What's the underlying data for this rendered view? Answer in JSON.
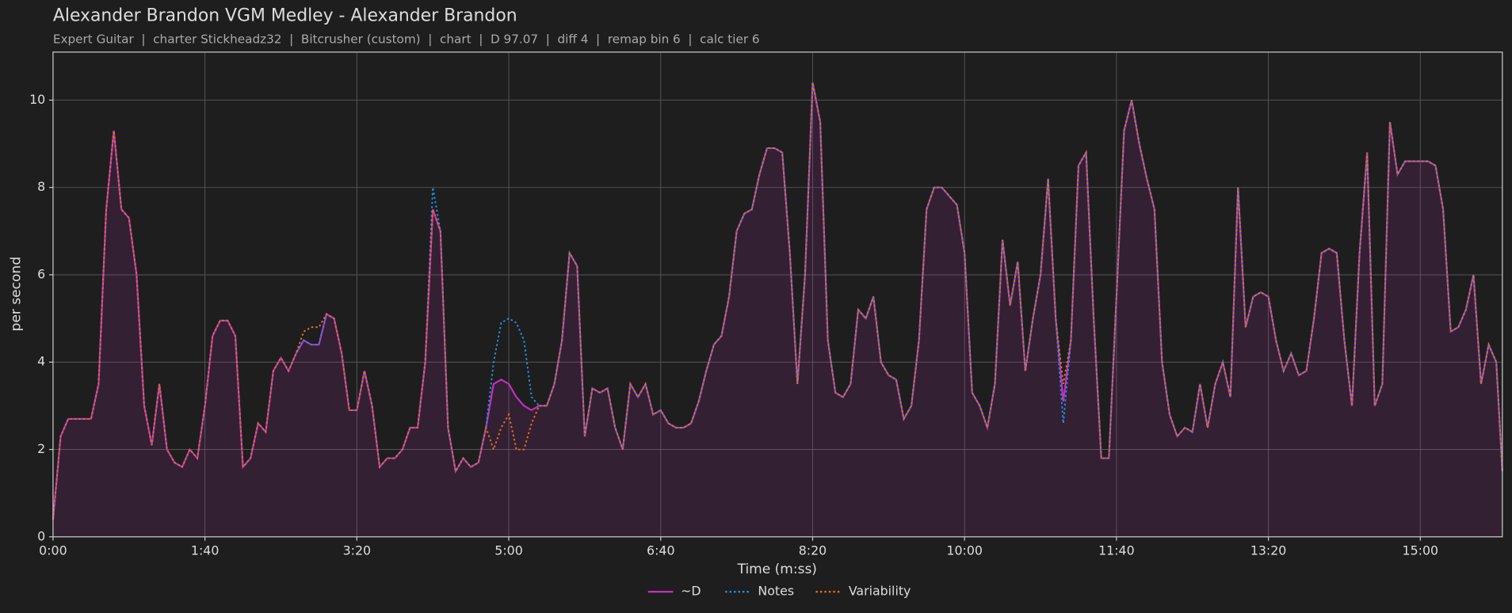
{
  "chart_data": {
    "type": "line",
    "title": "Alexander Brandon VGM Medley - Alexander Brandon",
    "subtitle": "Expert Guitar  |  charter Stickheadz32  |  Bitcrusher (custom)  |  chart  |  D 97.07  |  diff 4  |  remap bin 6  |  calc tier 6",
    "xlabel": "Time (m:ss)",
    "ylabel": "per second",
    "xlim": [
      0,
      954
    ],
    "ylim": [
      0,
      11.1
    ],
    "xticks": [
      {
        "value": 0,
        "label": "0:00"
      },
      {
        "value": 100,
        "label": "1:40"
      },
      {
        "value": 200,
        "label": "3:20"
      },
      {
        "value": 300,
        "label": "5:00"
      },
      {
        "value": 400,
        "label": "6:40"
      },
      {
        "value": 500,
        "label": "8:20"
      },
      {
        "value": 600,
        "label": "10:00"
      },
      {
        "value": 700,
        "label": "11:40"
      },
      {
        "value": 800,
        "label": "13:20"
      },
      {
        "value": 900,
        "label": "15:00"
      }
    ],
    "yticks": [
      0,
      2,
      4,
      6,
      8,
      10
    ],
    "grid": true,
    "legend": "bottom",
    "x": [
      0,
      5,
      10,
      15,
      20,
      25,
      30,
      35,
      40,
      45,
      50,
      55,
      60,
      65,
      70,
      75,
      80,
      85,
      90,
      95,
      100,
      105,
      110,
      115,
      120,
      125,
      130,
      135,
      140,
      145,
      150,
      155,
      160,
      165,
      170,
      175,
      180,
      185,
      190,
      195,
      200,
      205,
      210,
      215,
      220,
      225,
      230,
      235,
      240,
      245,
      250,
      255,
      260,
      265,
      270,
      275,
      280,
      285,
      290,
      295,
      300,
      305,
      310,
      315,
      320,
      325,
      330,
      335,
      340,
      345,
      350,
      355,
      360,
      365,
      370,
      375,
      380,
      385,
      390,
      395,
      400,
      405,
      410,
      415,
      420,
      425,
      430,
      435,
      440,
      445,
      450,
      455,
      460,
      465,
      470,
      475,
      480,
      485,
      490,
      495,
      500,
      505,
      510,
      515,
      520,
      525,
      530,
      535,
      540,
      545,
      550,
      555,
      560,
      565,
      570,
      575,
      580,
      585,
      590,
      595,
      600,
      605,
      610,
      615,
      620,
      625,
      630,
      635,
      640,
      645,
      650,
      655,
      660,
      665,
      670,
      675,
      680,
      685,
      690,
      695,
      700,
      705,
      710,
      715,
      720,
      725,
      730,
      735,
      740,
      745,
      750,
      755,
      760,
      765,
      770,
      775,
      780,
      785,
      790,
      795,
      800,
      805,
      810,
      815,
      820,
      825,
      830,
      835,
      840,
      845,
      850,
      855,
      860,
      865,
      870,
      875,
      880,
      885,
      890,
      895,
      900,
      905,
      910,
      915,
      920,
      925,
      930,
      935,
      940,
      945,
      950,
      954
    ],
    "series": [
      {
        "name": "~D",
        "color": "#c030c0",
        "dash": "solid",
        "values": [
          0.4,
          2.3,
          2.7,
          2.7,
          2.7,
          2.7,
          3.5,
          7.5,
          9.3,
          7.5,
          7.3,
          6.0,
          3.0,
          2.1,
          3.5,
          2.0,
          1.7,
          1.6,
          2.0,
          1.8,
          3.0,
          4.6,
          4.95,
          4.95,
          4.6,
          1.6,
          1.8,
          2.6,
          2.4,
          3.8,
          4.1,
          3.8,
          4.2,
          4.5,
          4.4,
          4.4,
          5.1,
          5.0,
          4.2,
          2.9,
          2.9,
          3.8,
          3.0,
          1.6,
          1.8,
          1.8,
          2.0,
          2.5,
          2.5,
          4.0,
          7.5,
          7.0,
          2.5,
          1.5,
          1.8,
          1.6,
          1.7,
          2.5,
          3.5,
          3.6,
          3.5,
          3.2,
          3.0,
          2.9,
          3.0,
          3.0,
          3.5,
          4.5,
          6.5,
          6.2,
          2.3,
          3.4,
          3.3,
          3.4,
          2.5,
          2.0,
          3.5,
          3.2,
          3.5,
          2.8,
          2.9,
          2.6,
          2.5,
          2.5,
          2.6,
          3.1,
          3.8,
          4.4,
          4.6,
          5.5,
          7.0,
          7.4,
          7.5,
          8.3,
          8.9,
          8.9,
          8.8,
          6.5,
          3.5,
          6.0,
          10.4,
          9.5,
          4.5,
          3.3,
          3.2,
          3.5,
          5.2,
          5.0,
          5.5,
          4.0,
          3.7,
          3.6,
          2.7,
          3.0,
          4.5,
          7.5,
          8.0,
          8.0,
          7.8,
          7.6,
          6.5,
          3.3,
          3.0,
          2.5,
          3.5,
          6.8,
          5.3,
          6.3,
          3.8,
          5.0,
          6.0,
          8.2,
          5.0,
          3.1,
          4.5,
          8.5,
          8.8,
          5.0,
          1.8,
          1.8,
          5.5,
          9.3,
          10.0,
          9.0,
          8.2,
          7.5,
          4.0,
          2.8,
          2.3,
          2.5,
          2.4,
          3.5,
          2.5,
          3.5,
          4.0,
          3.2,
          8.0,
          4.8,
          5.5,
          5.6,
          5.5,
          4.5,
          3.8,
          4.2,
          3.7,
          3.8,
          5.0,
          6.5,
          6.6,
          6.5,
          4.5,
          3.0,
          6.5,
          8.8,
          3.0,
          3.5,
          9.5,
          8.3,
          8.6,
          8.6,
          8.6,
          8.6,
          8.5,
          7.5,
          4.7,
          4.8,
          5.2,
          6.0,
          3.5,
          4.4,
          4.0,
          1.5
        ]
      },
      {
        "name": "Notes",
        "color": "#2090e0",
        "dash": "dotted",
        "values": [
          0.4,
          2.3,
          2.7,
          2.7,
          2.7,
          2.7,
          3.5,
          7.5,
          9.3,
          7.5,
          7.3,
          6.0,
          3.0,
          2.1,
          3.5,
          2.0,
          1.7,
          1.6,
          2.0,
          1.8,
          3.0,
          4.6,
          4.95,
          4.95,
          4.6,
          1.6,
          1.8,
          2.6,
          2.4,
          3.8,
          4.1,
          3.8,
          4.2,
          4.5,
          4.4,
          4.4,
          5.1,
          5.0,
          4.2,
          2.9,
          2.9,
          3.8,
          3.0,
          1.6,
          1.8,
          1.8,
          2.0,
          2.5,
          2.5,
          4.0,
          8.0,
          7.0,
          2.5,
          1.5,
          1.8,
          1.6,
          1.7,
          2.5,
          4.0,
          4.9,
          5.0,
          4.9,
          4.5,
          3.2,
          3.0,
          3.0,
          3.5,
          4.5,
          6.5,
          6.2,
          2.3,
          3.4,
          3.3,
          3.4,
          2.5,
          2.0,
          3.5,
          3.2,
          3.5,
          2.8,
          2.9,
          2.6,
          2.5,
          2.5,
          2.6,
          3.1,
          3.8,
          4.4,
          4.6,
          5.5,
          7.0,
          7.4,
          7.5,
          8.3,
          8.9,
          8.9,
          8.8,
          6.5,
          3.5,
          6.0,
          10.4,
          9.5,
          4.5,
          3.3,
          3.2,
          3.5,
          5.2,
          5.0,
          5.5,
          4.0,
          3.7,
          3.6,
          2.7,
          3.0,
          4.5,
          7.5,
          8.0,
          8.0,
          7.8,
          7.6,
          6.5,
          3.3,
          3.0,
          2.5,
          3.5,
          6.8,
          5.3,
          6.3,
          3.8,
          5.0,
          6.0,
          8.2,
          5.0,
          2.6,
          4.5,
          8.5,
          8.8,
          5.0,
          1.8,
          1.8,
          5.5,
          9.3,
          10.0,
          9.0,
          8.2,
          7.5,
          4.0,
          2.8,
          2.3,
          2.5,
          2.4,
          3.5,
          2.5,
          3.5,
          4.0,
          3.2,
          8.0,
          4.8,
          5.5,
          5.6,
          5.5,
          4.5,
          3.8,
          4.2,
          3.7,
          3.8,
          5.0,
          6.5,
          6.6,
          6.5,
          4.5,
          3.0,
          6.5,
          8.8,
          3.0,
          3.5,
          9.5,
          8.3,
          8.6,
          8.6,
          8.6,
          8.6,
          8.5,
          7.5,
          4.7,
          4.8,
          5.2,
          6.0,
          3.5,
          4.4,
          4.0,
          1.5
        ]
      },
      {
        "name": "Variability",
        "color": "#e07020",
        "dash": "dotted",
        "values": [
          0.4,
          2.3,
          2.7,
          2.7,
          2.7,
          2.7,
          3.5,
          7.5,
          9.3,
          7.5,
          7.3,
          6.0,
          3.0,
          2.1,
          3.5,
          2.0,
          1.7,
          1.6,
          2.0,
          1.8,
          3.0,
          4.6,
          4.95,
          4.95,
          4.6,
          1.6,
          1.8,
          2.6,
          2.4,
          3.8,
          4.1,
          3.8,
          4.2,
          4.7,
          4.8,
          4.8,
          5.1,
          5.0,
          4.2,
          2.9,
          2.9,
          3.8,
          3.0,
          1.6,
          1.8,
          1.8,
          2.0,
          2.5,
          2.5,
          4.0,
          7.5,
          7.0,
          2.5,
          1.5,
          1.8,
          1.6,
          1.7,
          2.5,
          2.0,
          2.5,
          2.8,
          2.0,
          2.0,
          2.6,
          3.0,
          3.0,
          3.5,
          4.5,
          6.5,
          6.2,
          2.3,
          3.4,
          3.3,
          3.4,
          2.5,
          2.0,
          3.5,
          3.2,
          3.5,
          2.8,
          2.9,
          2.6,
          2.5,
          2.5,
          2.6,
          3.1,
          3.8,
          4.4,
          4.6,
          5.5,
          7.0,
          7.4,
          7.5,
          8.3,
          8.9,
          8.9,
          8.8,
          6.5,
          3.5,
          6.0,
          10.4,
          9.5,
          4.5,
          3.3,
          3.2,
          3.5,
          5.2,
          5.0,
          5.5,
          4.0,
          3.7,
          3.6,
          2.7,
          3.0,
          4.5,
          7.5,
          8.0,
          8.0,
          7.8,
          7.6,
          6.5,
          3.3,
          3.0,
          2.5,
          3.5,
          6.8,
          5.3,
          6.3,
          3.8,
          5.0,
          6.0,
          8.2,
          5.0,
          3.5,
          4.5,
          8.5,
          8.8,
          5.0,
          1.8,
          1.8,
          5.5,
          9.3,
          10.0,
          9.0,
          8.2,
          7.5,
          4.0,
          2.8,
          2.3,
          2.5,
          2.4,
          3.5,
          2.5,
          3.5,
          4.0,
          3.2,
          8.0,
          4.8,
          5.5,
          5.6,
          5.5,
          4.5,
          3.8,
          4.2,
          3.7,
          3.8,
          5.0,
          6.5,
          6.6,
          6.5,
          4.5,
          3.0,
          6.5,
          8.8,
          3.0,
          3.5,
          9.5,
          8.3,
          8.6,
          8.6,
          8.6,
          8.6,
          8.5,
          7.5,
          4.7,
          4.8,
          5.2,
          6.0,
          3.5,
          4.4,
          4.0,
          1.5
        ]
      }
    ]
  }
}
